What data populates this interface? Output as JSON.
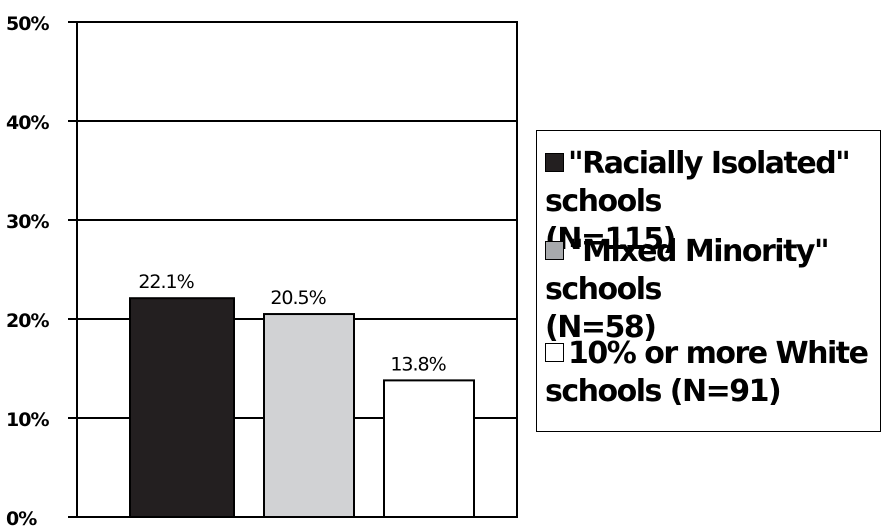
{
  "chart_data": {
    "type": "bar",
    "categories": [
      "\"Racially Isolated\" schools (N=115)",
      "\"Mixed Minority\" schools (N=58)",
      "10% or more White schools (N=91)"
    ],
    "values": [
      22.1,
      20.5,
      13.8
    ],
    "value_labels": [
      "22.1%",
      "20.5%",
      "13.8%"
    ],
    "bar_colors": [
      "#231f20",
      "#d1d2d4",
      "#ffffff"
    ],
    "ylim": [
      0,
      50
    ],
    "yticks": [
      0,
      10,
      20,
      30,
      40,
      50
    ],
    "ytick_labels": [
      "0%",
      "10%",
      "20%",
      "30%",
      "40%",
      "50%"
    ],
    "grid": true,
    "legend_placement": "right",
    "title": "",
    "xlabel": "",
    "ylabel": ""
  },
  "legend": {
    "items": [
      {
        "label": "\"Racially Isolated\" schools\n(N=115)",
        "color": "#231f20"
      },
      {
        "label": "\"Mixed Minority\" schools\n(N=58)",
        "color": "#a7a9ac"
      },
      {
        "label": "10% or more White\nschools (N=91)",
        "color": "#ffffff"
      }
    ]
  }
}
